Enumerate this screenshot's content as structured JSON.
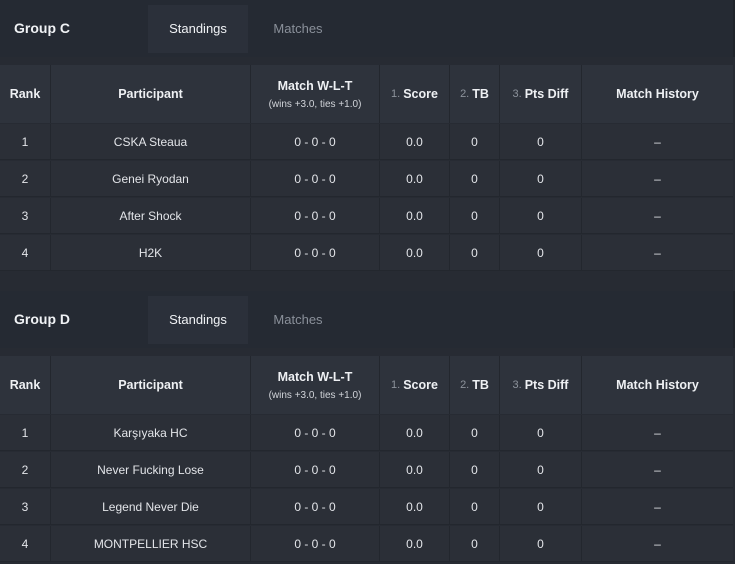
{
  "groups": [
    {
      "title": "Group C",
      "tabs": {
        "standings": "Standings",
        "matches": "Matches"
      },
      "headers": {
        "rank": "Rank",
        "participant": "Participant",
        "match_wlt": "Match W-L-T",
        "match_wlt_sub": "(wins +3.0, ties +1.0)",
        "score_num": "1.",
        "score": "Score",
        "tb_num": "2.",
        "tb": "TB",
        "pts_num": "3.",
        "pts": "Pts Diff",
        "history": "Match History"
      },
      "rows": [
        {
          "rank": "1",
          "participant": "CSKA Steaua",
          "wlt": "0 - 0 - 0",
          "score": "0.0",
          "tb": "0",
          "pts": "0",
          "history": "–"
        },
        {
          "rank": "2",
          "participant": "Genei Ryodan",
          "wlt": "0 - 0 - 0",
          "score": "0.0",
          "tb": "0",
          "pts": "0",
          "history": "–"
        },
        {
          "rank": "3",
          "participant": "After Shock",
          "wlt": "0 - 0 - 0",
          "score": "0.0",
          "tb": "0",
          "pts": "0",
          "history": "–"
        },
        {
          "rank": "4",
          "participant": "H2K",
          "wlt": "0 - 0 - 0",
          "score": "0.0",
          "tb": "0",
          "pts": "0",
          "history": "–"
        }
      ]
    },
    {
      "title": "Group D",
      "tabs": {
        "standings": "Standings",
        "matches": "Matches"
      },
      "headers": {
        "rank": "Rank",
        "participant": "Participant",
        "match_wlt": "Match W-L-T",
        "match_wlt_sub": "(wins +3.0, ties +1.0)",
        "score_num": "1.",
        "score": "Score",
        "tb_num": "2.",
        "tb": "TB",
        "pts_num": "3.",
        "pts": "Pts Diff",
        "history": "Match History"
      },
      "rows": [
        {
          "rank": "1",
          "participant": "Karşıyaka HC",
          "wlt": "0 - 0 - 0",
          "score": "0.0",
          "tb": "0",
          "pts": "0",
          "history": "–"
        },
        {
          "rank": "2",
          "participant": "Never Fucking Lose",
          "wlt": "0 - 0 - 0",
          "score": "0.0",
          "tb": "0",
          "pts": "0",
          "history": "–"
        },
        {
          "rank": "3",
          "participant": "Legend Never Die",
          "wlt": "0 - 0 - 0",
          "score": "0.0",
          "tb": "0",
          "pts": "0",
          "history": "–"
        },
        {
          "rank": "4",
          "participant": "MONTPELLIER HSC",
          "wlt": "0 - 0 - 0",
          "score": "0.0",
          "tb": "0",
          "pts": "0",
          "history": "–"
        }
      ]
    }
  ]
}
